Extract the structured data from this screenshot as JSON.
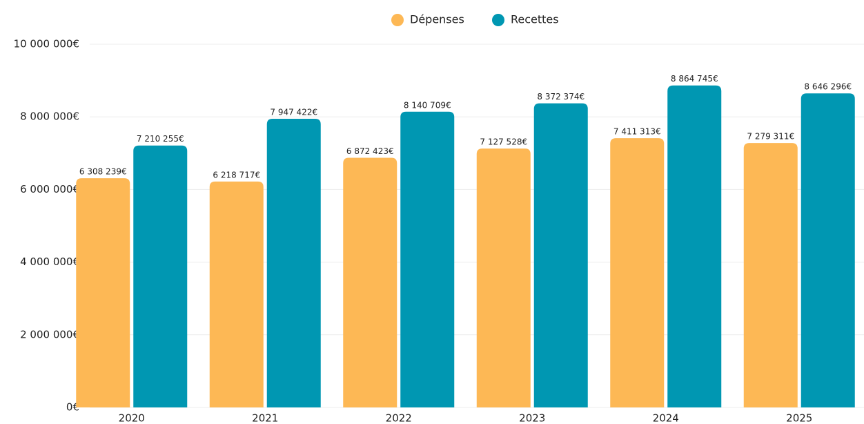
{
  "chart_data": {
    "type": "bar",
    "categories": [
      "2020",
      "2021",
      "2022",
      "2023",
      "2024",
      "2025"
    ],
    "series": [
      {
        "name": "Dépenses",
        "color": "#fdb855",
        "values": [
          6308239,
          6218717,
          6872423,
          7127528,
          7411313,
          7279311
        ],
        "value_labels": [
          "6 308 239€",
          "6 218 717€",
          "6 872 423€",
          "7 127 528€",
          "7 411 313€",
          "7 279 311€"
        ]
      },
      {
        "name": "Recettes",
        "color": "#0097b2",
        "values": [
          7210255,
          7947422,
          8140709,
          8372374,
          8864745,
          8646296
        ],
        "value_labels": [
          "7 210 255€",
          "7 947 422€",
          "8 140 709€",
          "8 372 374€",
          "8 864 745€",
          "8 646 296€"
        ]
      }
    ],
    "ylim": [
      0,
      10000000
    ],
    "yticks": [
      {
        "value": 0,
        "label": "0€"
      },
      {
        "value": 2000000,
        "label": "2 000 000€"
      },
      {
        "value": 4000000,
        "label": "4 000 000€"
      },
      {
        "value": 6000000,
        "label": "6 000 000€"
      },
      {
        "value": 8000000,
        "label": "8 000 000€"
      },
      {
        "value": 10000000,
        "label": "10 000 000€"
      }
    ],
    "grid": true,
    "legend": "top"
  }
}
